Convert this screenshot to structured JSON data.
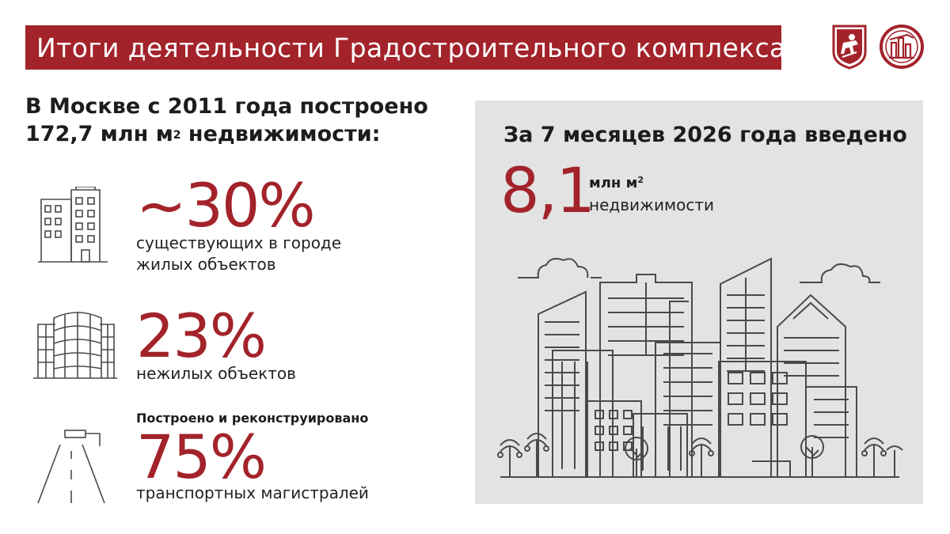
{
  "header": {
    "title": "Итоги деятельности Градостроительного комплекса"
  },
  "lead": {
    "line1": "В Москве с 2011 года построено",
    "line2_value": "172,7 млн м",
    "line2_sup": "2",
    "line2_rest": " недвижимости:"
  },
  "stats": [
    {
      "value": "~30%",
      "desc_line1": "существующих в городе",
      "desc_line2": "жилых объектов"
    },
    {
      "value": "23%",
      "desc_line1": "нежилых объектов"
    },
    {
      "subhead": "Построено и реконструировано",
      "value": "75%",
      "desc_line1": "транспортных магистралей"
    }
  ],
  "panel": {
    "title": "За 7 месяцев 2026 года введено",
    "value": "8,1",
    "unit": "млн м",
    "unit_sup": "2",
    "unit_line2": "недвижимости"
  },
  "colors": {
    "accent": "#a3232b",
    "panel_bg": "#e3e3e3",
    "icon_stroke": "#4a4a4a"
  },
  "icons": [
    "moscow-coat-of-arms-icon",
    "construction-complex-logo-icon",
    "residential-building-icon",
    "office-building-icon",
    "road-icon",
    "city-skyline-icon"
  ]
}
